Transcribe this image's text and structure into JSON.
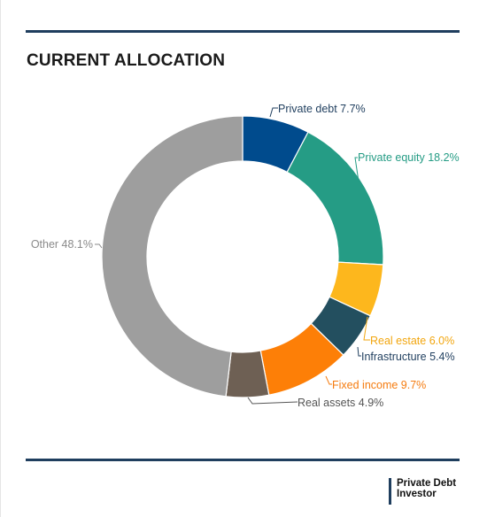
{
  "title": "CURRENT ALLOCATION",
  "logo": {
    "line1": "Private Debt",
    "line2": "Investor"
  },
  "chart_data": {
    "type": "pie",
    "variant": "donut",
    "title": "CURRENT ALLOCATION",
    "series": [
      {
        "label": "Private debt 7.7%",
        "value": 7.7,
        "color": "#004b8d"
      },
      {
        "label": "Private equity 18.2%",
        "value": 18.2,
        "color": "#259c85"
      },
      {
        "label": "Real estate 6.0%",
        "value": 6.0,
        "color": "#fdb71d"
      },
      {
        "label": "Infrastructure 5.4%",
        "value": 5.4,
        "color": "#234f5f"
      },
      {
        "label": "Fixed income 9.7%",
        "value": 9.7,
        "color": "#fd7f07"
      },
      {
        "label": "Real assets 4.9%",
        "value": 4.9,
        "color": "#6e6054"
      },
      {
        "label": "Other 48.1%",
        "value": 48.1,
        "color": "#9e9e9e"
      }
    ],
    "label_colors": {
      "Private debt 7.7%": "#1f3e5e",
      "Private equity 18.2%": "#259c85",
      "Real estate 6.0%": "#f2a60f",
      "Infrastructure 5.4%": "#1f3e5e",
      "Fixed income 9.7%": "#f57c10",
      "Real assets 4.9%": "#555555",
      "Other 48.1%": "#8a8a8a"
    }
  }
}
